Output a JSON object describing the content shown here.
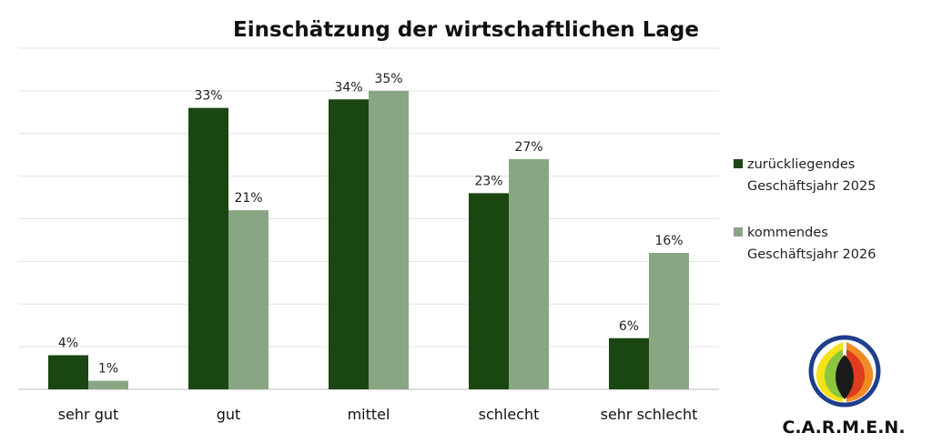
{
  "chart_data": {
    "type": "bar",
    "title": "Einschätzung der wirtschaftlichen Lage",
    "categories": [
      "sehr gut",
      "gut",
      "mittel",
      "schlecht",
      "sehr schlecht"
    ],
    "series": [
      {
        "name": "zurückliegendes Geschäftsjahr 2025",
        "legend_lines": [
          "zurückliegendes",
          "Geschäftsjahr 2025"
        ],
        "values": [
          4,
          33,
          34,
          23,
          6
        ],
        "labels": [
          "4%",
          "33%",
          "34%",
          "23%",
          "6%"
        ],
        "color": "#1a4611"
      },
      {
        "name": "kommendes Geschäftsjahr 2026",
        "legend_lines": [
          "kommendes",
          "Geschäftsjahr 2026"
        ],
        "values": [
          1,
          21,
          35,
          27,
          16
        ],
        "labels": [
          "1%",
          "21%",
          "35%",
          "27%",
          "16%"
        ],
        "color": "#8aa584"
      }
    ],
    "ylim": [
      0,
      40
    ],
    "grid": true,
    "legend": "right",
    "xlabel": "",
    "ylabel": ""
  },
  "logo": {
    "text": "C.A.R.M.E.N.",
    "colors": [
      "#1e3f8a",
      "#f4e31a",
      "#8cc63f",
      "#f08a24",
      "#e03c1f"
    ]
  }
}
